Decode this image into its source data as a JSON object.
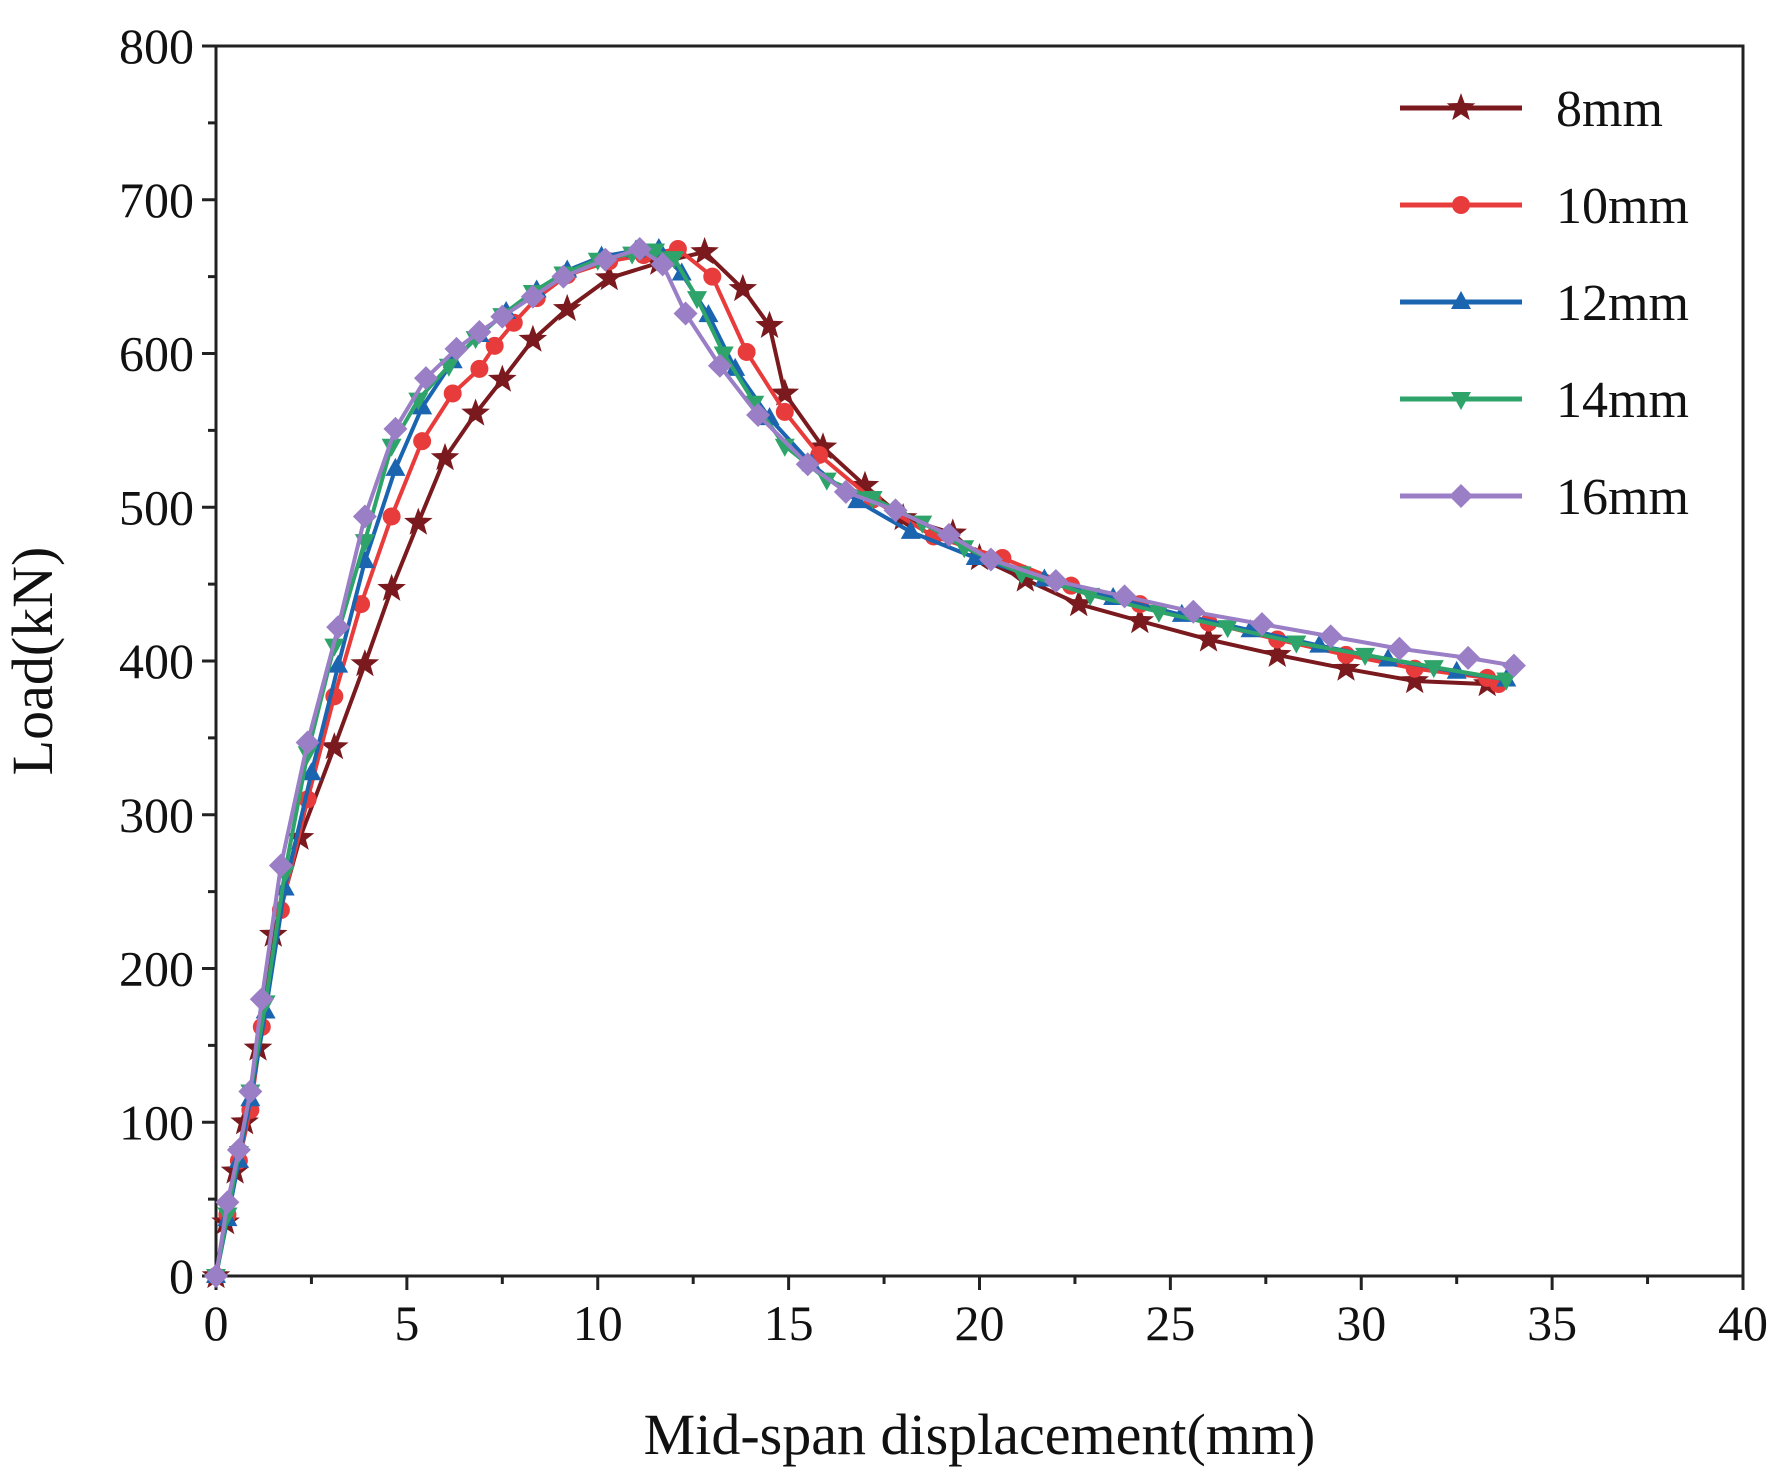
{
  "chart_data": {
    "type": "line",
    "xlabel": "Mid-span displacement(mm)",
    "ylabel": "Load(kN)",
    "xlim": [
      0,
      40
    ],
    "ylim": [
      0,
      800
    ],
    "xticks": [
      0,
      5,
      10,
      15,
      20,
      25,
      30,
      35,
      40
    ],
    "yticks": [
      0,
      100,
      200,
      300,
      400,
      500,
      600,
      700,
      800
    ],
    "xtick_labels": [
      "0",
      "5",
      "10",
      "15",
      "20",
      "25",
      "30",
      "35",
      "40"
    ],
    "ytick_labels": [
      "0",
      "100",
      "200",
      "300",
      "400",
      "500",
      "600",
      "700",
      "800"
    ],
    "legend_position": "top-right",
    "grid": false,
    "series": [
      {
        "name": "8mm",
        "color": "#7a1a1e",
        "marker": "star",
        "x": [
          0,
          0.25,
          0.5,
          0.75,
          1.1,
          1.5,
          2.2,
          3.1,
          3.9,
          4.6,
          5.3,
          6.0,
          6.8,
          7.5,
          8.3,
          9.2,
          10.3,
          11.6,
          12.8,
          13.8,
          14.5,
          14.9,
          15.9,
          17.0,
          18.0,
          19.3,
          20.0,
          21.2,
          22.6,
          24.2,
          26.0,
          27.8,
          29.6,
          31.4,
          33.3
        ],
        "y": [
          0,
          35,
          68,
          100,
          148,
          222,
          285,
          344,
          398,
          447,
          490,
          532,
          561,
          583,
          609,
          629,
          649,
          659,
          666,
          642,
          618,
          574,
          539,
          514,
          493,
          483,
          467,
          453,
          437,
          426,
          414,
          404,
          395,
          387,
          385
        ]
      },
      {
        "name": "10mm",
        "color": "#e83c3c",
        "marker": "circle",
        "x": [
          0,
          0.3,
          0.6,
          0.9,
          1.2,
          1.7,
          2.4,
          3.1,
          3.8,
          4.6,
          5.4,
          6.2,
          6.9,
          7.3,
          7.8,
          8.4,
          9.2,
          10.3,
          11.2,
          12.1,
          13.0,
          13.9,
          14.9,
          15.8,
          17.2,
          18.8,
          20.6,
          22.4,
          24.2,
          26.0,
          27.8,
          29.6,
          31.4,
          33.3,
          33.6
        ],
        "y": [
          0,
          40,
          75,
          108,
          162,
          238,
          310,
          377,
          437,
          494,
          543,
          574,
          590,
          605,
          620,
          636,
          651,
          660,
          664,
          668,
          650,
          601,
          562,
          534,
          505,
          481,
          467,
          449,
          437,
          425,
          414,
          404,
          395,
          389,
          385
        ]
      },
      {
        "name": "12mm",
        "color": "#1a64b0",
        "marker": "triangle-up",
        "x": [
          0,
          0.3,
          0.6,
          0.9,
          1.3,
          1.8,
          2.5,
          3.2,
          3.9,
          4.7,
          5.4,
          6.2,
          6.9,
          7.6,
          8.4,
          9.2,
          10.1,
          11.0,
          11.6,
          12.2,
          12.9,
          13.6,
          14.5,
          15.6,
          16.8,
          18.2,
          19.9,
          21.7,
          23.5,
          25.3,
          27.1,
          28.9,
          30.7,
          32.5,
          33.8
        ],
        "y": [
          0,
          37,
          75,
          115,
          172,
          252,
          327,
          397,
          465,
          525,
          565,
          595,
          612,
          627,
          641,
          654,
          663,
          667,
          668,
          652,
          625,
          590,
          558,
          528,
          504,
          484,
          467,
          453,
          441,
          430,
          420,
          410,
          401,
          393,
          388
        ]
      },
      {
        "name": "14mm",
        "color": "#2ea46a",
        "marker": "triangle-down",
        "x": [
          0,
          0.3,
          0.6,
          0.9,
          1.3,
          1.8,
          2.4,
          3.1,
          3.9,
          4.6,
          5.3,
          6.1,
          6.8,
          7.5,
          8.3,
          9.1,
          10.0,
          10.9,
          11.5,
          12.0,
          12.6,
          13.3,
          14.1,
          14.9,
          16.0,
          17.2,
          18.5,
          19.6,
          21.1,
          22.9,
          24.7,
          26.5,
          28.3,
          30.1,
          31.9,
          33.8
        ],
        "y": [
          0,
          40,
          80,
          120,
          178,
          262,
          340,
          410,
          478,
          540,
          570,
          592,
          610,
          625,
          640,
          652,
          661,
          665,
          667,
          662,
          636,
          600,
          568,
          540,
          518,
          506,
          490,
          474,
          457,
          443,
          432,
          422,
          412,
          404,
          396,
          388
        ]
      },
      {
        "name": "16mm",
        "color": "#9a7ec6",
        "marker": "diamond",
        "x": [
          0,
          0.3,
          0.6,
          0.9,
          1.2,
          1.7,
          2.4,
          3.2,
          3.9,
          4.7,
          5.5,
          6.3,
          6.9,
          7.5,
          8.3,
          9.1,
          10.2,
          11.1,
          11.7,
          12.3,
          13.2,
          14.2,
          15.5,
          16.5,
          17.8,
          19.2,
          20.3,
          22.0,
          23.8,
          25.6,
          27.4,
          29.2,
          31.0,
          32.8,
          34.0
        ],
        "y": [
          0,
          48,
          82,
          120,
          180,
          267,
          347,
          422,
          494,
          551,
          584,
          603,
          614,
          624,
          637,
          650,
          661,
          668,
          658,
          626,
          592,
          560,
          528,
          510,
          498,
          482,
          466,
          452,
          442,
          432,
          424,
          416,
          408,
          402,
          397
        ]
      }
    ]
  }
}
